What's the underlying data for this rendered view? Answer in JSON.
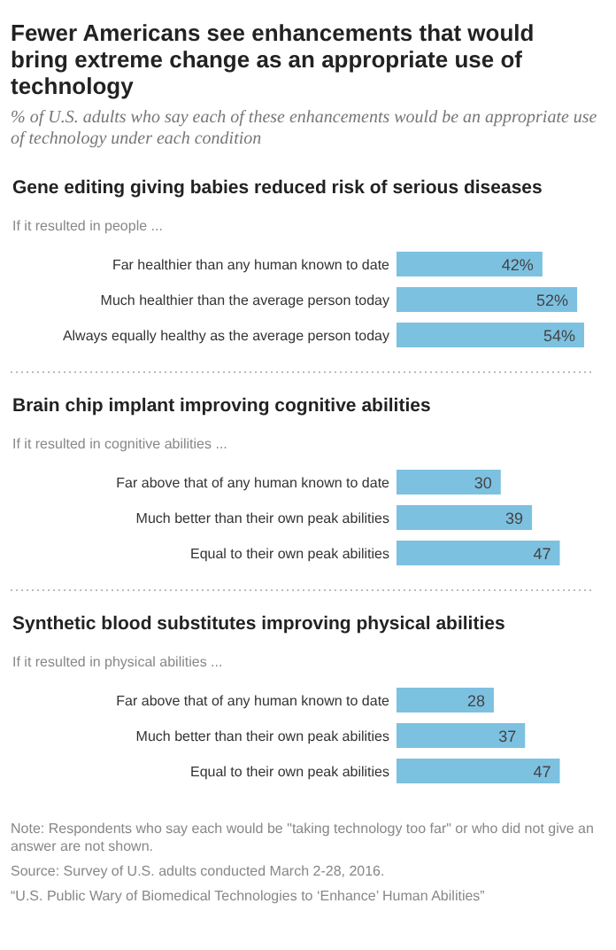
{
  "chart_data": [
    {
      "type": "bar",
      "orientation": "horizontal",
      "title": "Fewer Americans see enhancements that would bring extreme change as an appropriate use of technology",
      "subtitle": "% of U.S. adults who say each of these enhancements would be an appropriate use of technology under each condition",
      "xlabel": "Gene editing giving babies reduced risk of serious diseases",
      "ylabel": "If it resulted in people ...",
      "categories": [
        "Far healthier than any human known to date",
        "Much healthier than the average person today",
        "Always equally healthy as the average person today"
      ],
      "values": [
        42,
        52,
        54
      ],
      "value_labels": [
        "42%",
        "52%",
        "54%"
      ],
      "color": "#7dc1e1"
    },
    {
      "type": "bar",
      "orientation": "horizontal",
      "xlabel": "Brain chip implant improving cognitive abilities",
      "ylabel": "If it resulted in cognitive abilities ...",
      "categories": [
        "Far above that of any human known to date",
        "Much better than their own peak abilities",
        "Equal to their own peak abilities"
      ],
      "values": [
        30,
        39,
        47
      ],
      "data_labels": true,
      "color": "#7dc1e1"
    },
    {
      "type": "bar",
      "orientation": "horizontal",
      "xlabel": "Synthetic blood substitutes improving physical abilities",
      "ylabel": "If it resulted in physical abilities ...",
      "categories": [
        "Far above that of any human known to date",
        "Much better than their own peak abilities",
        "Equal to their own peak abilities"
      ],
      "values": [
        28,
        37,
        47
      ],
      "data_labels": true,
      "color": "#7dc1e1",
      "annotations": [
        "Note: Respondents who say each would be \"taking technology too far\" or who did not give an answer are not shown.",
        "Source: Survey of U.S. adults conducted March 2-28, 2016.",
        "“U.S. Public Wary of Biomedical Technologies to ‘Enhance’ Human Abilities”"
      ]
    }
  ]
}
